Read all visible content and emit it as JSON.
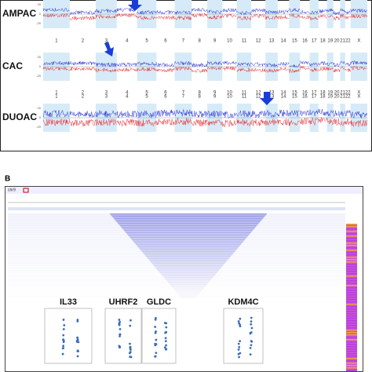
{
  "panel_a": {
    "rows": [
      {
        "label": "AMPAC"
      },
      {
        "label": "CAC"
      },
      {
        "label": "DUOAC"
      }
    ],
    "y_ticks": [
      "20",
      "0",
      "-20"
    ],
    "chromosomes": [
      "1",
      "2",
      "3",
      "4",
      "5",
      "6",
      "7",
      "8",
      "9",
      "10",
      "11",
      "12",
      "13",
      "14",
      "15",
      "16",
      "17",
      "18",
      "19",
      "20",
      "21",
      "22",
      "X"
    ]
  },
  "panel_b": {
    "label": "B",
    "locus": "chr9",
    "genes": [
      {
        "name": "IL33"
      },
      {
        "name": "UHRF2"
      },
      {
        "name": "GLDC"
      },
      {
        "name": "KDM4C"
      }
    ]
  }
}
